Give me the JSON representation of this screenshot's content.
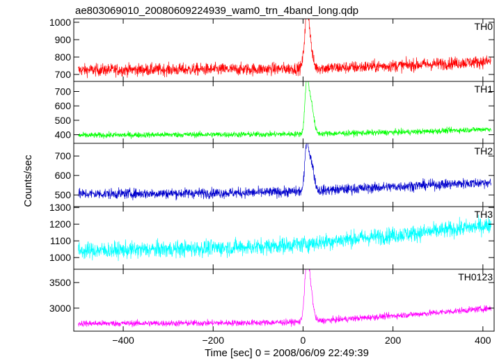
{
  "chart_data": {
    "type": "line",
    "title": "ae803069010_20080609224939_wam0_trn_4band_long.qdp",
    "xlabel": "Time [sec] 0 = 2008/06/09 22:49:39",
    "ylabel": "Counts/sec",
    "xlim": [
      -510,
      425
    ],
    "x_ticks": [
      -400,
      -200,
      0,
      200,
      400
    ],
    "grid": false,
    "legend": "none",
    "panels": [
      {
        "name": "TH0",
        "color": "#ff0000",
        "ylim": [
          660,
          1020
        ],
        "y_ticks": [
          700,
          800,
          900,
          1000
        ],
        "baseline": [
          [
            -500,
            725
          ],
          [
            -300,
            728
          ],
          [
            -100,
            730
          ],
          [
            0,
            735
          ],
          [
            100,
            740
          ],
          [
            250,
            755
          ],
          [
            420,
            775
          ]
        ],
        "noise": 32,
        "bursts": [
          {
            "t": 8,
            "height": 230,
            "width": 5
          },
          {
            "t": 14,
            "height": 140,
            "width": 6
          }
        ]
      },
      {
        "name": "TH1",
        "color": "#00ff00",
        "ylim": [
          340,
          770
        ],
        "y_ticks": [
          400,
          500,
          600,
          700
        ],
        "baseline": [
          [
            -500,
            395
          ],
          [
            -300,
            400
          ],
          [
            -100,
            402
          ],
          [
            0,
            405
          ],
          [
            100,
            410
          ],
          [
            250,
            420
          ],
          [
            420,
            440
          ]
        ],
        "noise": 18,
        "bursts": [
          {
            "t": 8,
            "height": 320,
            "width": 4
          },
          {
            "t": 17,
            "height": 230,
            "width": 6
          }
        ]
      },
      {
        "name": "TH2",
        "color": "#0000cc",
        "ylim": [
          440,
          765
        ],
        "y_ticks": [
          500,
          600,
          700
        ],
        "baseline": [
          [
            -500,
            505
          ],
          [
            -300,
            508
          ],
          [
            -100,
            512
          ],
          [
            0,
            518
          ],
          [
            100,
            530
          ],
          [
            250,
            548
          ],
          [
            420,
            565
          ]
        ],
        "noise": 24,
        "bursts": [
          {
            "t": 8,
            "height": 230,
            "width": 4
          },
          {
            "t": 18,
            "height": 150,
            "width": 6
          }
        ]
      },
      {
        "name": "TH3",
        "color": "#00ffff",
        "ylim": [
          930,
          1305
        ],
        "y_ticks": [
          1000,
          1100,
          1200,
          1300
        ],
        "baseline": [
          [
            -500,
            1040
          ],
          [
            -300,
            1050
          ],
          [
            -100,
            1065
          ],
          [
            0,
            1080
          ],
          [
            100,
            1110
          ],
          [
            250,
            1145
          ],
          [
            420,
            1195
          ]
        ],
        "noise": 45,
        "bursts": []
      },
      {
        "name": "TH0123",
        "color": "#ff00ff",
        "ylim": [
          2550,
          3760
        ],
        "y_ticks": [
          3000,
          3500
        ],
        "baseline": [
          [
            -500,
            2700
          ],
          [
            -300,
            2705
          ],
          [
            -100,
            2715
          ],
          [
            0,
            2730
          ],
          [
            100,
            2790
          ],
          [
            250,
            2880
          ],
          [
            420,
            3000
          ]
        ],
        "noise": 55,
        "bursts": [
          {
            "t": 8,
            "height": 950,
            "width": 5
          },
          {
            "t": 16,
            "height": 600,
            "width": 6
          }
        ]
      }
    ]
  }
}
